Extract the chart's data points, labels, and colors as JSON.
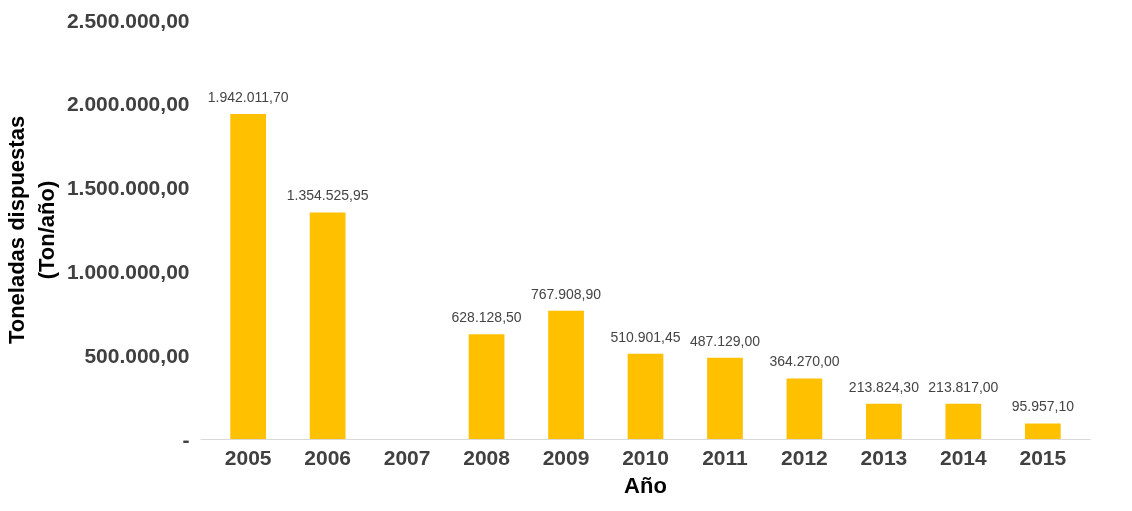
{
  "chart_data": {
    "type": "bar",
    "xlabel": "Año",
    "ylabel": "Toneladas dispuestas\n(Ton/año)",
    "categories": [
      "2005",
      "2006",
      "2007",
      "2008",
      "2009",
      "2010",
      "2011",
      "2012",
      "2013",
      "2014",
      "2015"
    ],
    "values": [
      1942011.7,
      1354525.95,
      null,
      628128.5,
      767908.9,
      510901.45,
      487129.0,
      364270.0,
      213824.3,
      213817.0,
      95957.1
    ],
    "value_labels": [
      "1.942.011,70",
      "1.354.525,95",
      null,
      "628.128,50",
      "767.908,90",
      "510.901,45",
      "487.129,00",
      "364.270,00",
      "213.824,30",
      "213.817,00",
      "95.957,10"
    ],
    "color": "#ffc000",
    "ylim": [
      0,
      2500000
    ],
    "yticks": [
      {
        "value": 0,
        "label": "-"
      },
      {
        "value": 500000,
        "label": "500.000,00"
      },
      {
        "value": 1000000,
        "label": "1.000.000,00"
      },
      {
        "value": 1500000,
        "label": "1.500.000,00"
      },
      {
        "value": 2000000,
        "label": "2.000.000,00"
      },
      {
        "value": 2500000,
        "label": "2.500.000,00"
      }
    ],
    "grid": false
  }
}
